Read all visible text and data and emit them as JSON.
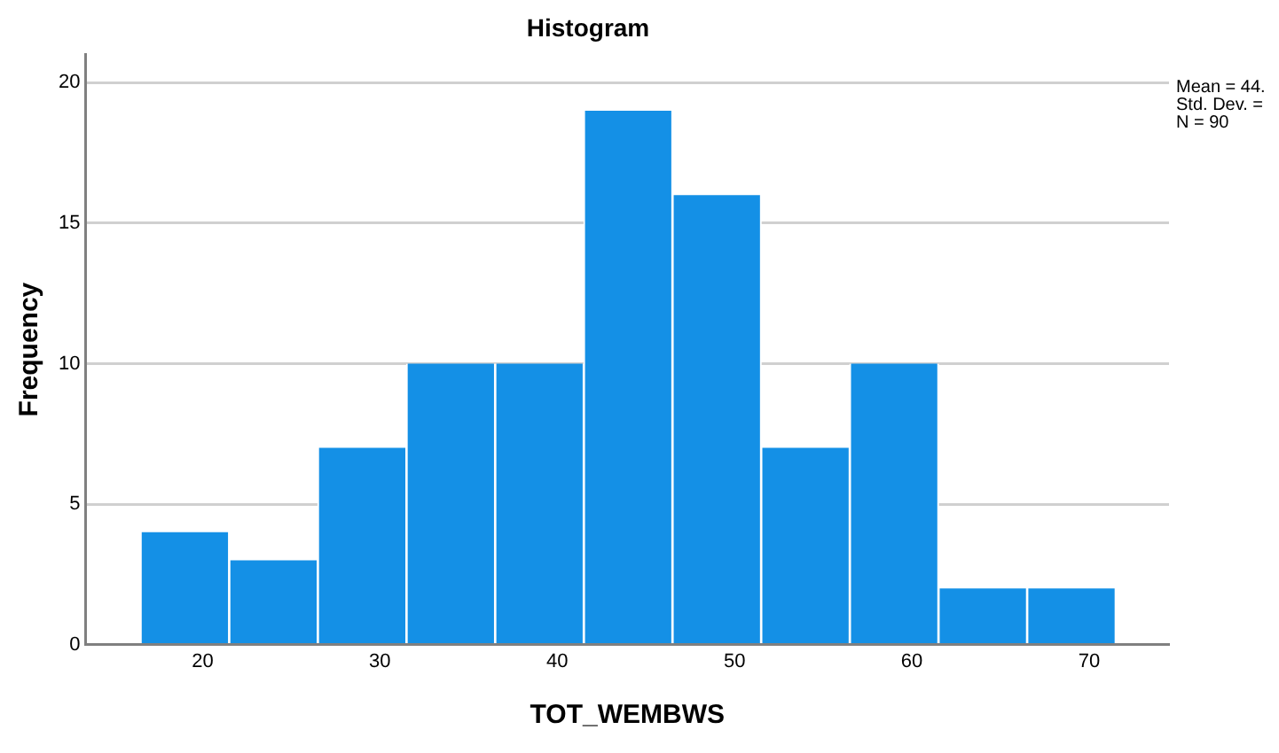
{
  "chart_data": {
    "type": "histogram",
    "title": "Histogram",
    "xlabel": "TOT_WEMBWS",
    "ylabel": "Frequency",
    "bins": [
      16.5,
      21.5,
      26.5,
      31.5,
      36.5,
      41.5,
      46.5,
      51.5,
      56.5,
      61.5,
      66.5,
      71.5
    ],
    "values": [
      4,
      3,
      7,
      10,
      10,
      19,
      16,
      7,
      10,
      2,
      2
    ],
    "color": "#1490e6",
    "xlim": [
      13.4,
      74.5
    ],
    "xticks": [
      20,
      30,
      40,
      50,
      60,
      70
    ],
    "ylim": [
      0,
      21
    ],
    "yticks": [
      0,
      5,
      10,
      15,
      20
    ],
    "grid": "y",
    "legend": false,
    "annotations": [
      "Mean = 44.",
      "Std. Dev. =",
      "N = 90"
    ]
  }
}
